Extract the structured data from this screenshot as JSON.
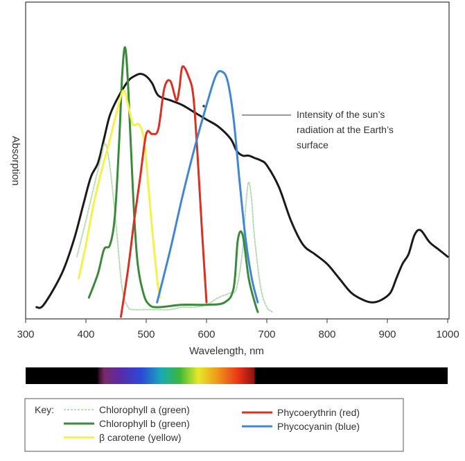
{
  "chart_data": {
    "type": "line",
    "xlabel": "Wavelength, nm",
    "ylabel": "Absorption",
    "xlim": [
      300,
      1000
    ],
    "ylim": [
      0,
      100
    ],
    "x_ticks": [
      "300",
      "400",
      "500",
      "600",
      "700",
      "800",
      "900",
      "1000"
    ],
    "annotation": [
      "Intensity of the sun’s",
      "radiation at the Earth’s",
      "surface"
    ],
    "key_label": "Key:",
    "spectrum_bar": {
      "x_start": 420,
      "x_end": 680
    },
    "sun": {
      "color": "#1a1a1a",
      "x": [
        318,
        330,
        360,
        380,
        395,
        408,
        420,
        430,
        440,
        455,
        470,
        480,
        490,
        500,
        510,
        520,
        540,
        560,
        580,
        600,
        620,
        640,
        650,
        660,
        670,
        680,
        690,
        700,
        720,
        740,
        760,
        780,
        800,
        820,
        840,
        860,
        875,
        890,
        905,
        915,
        925,
        935,
        945,
        955,
        970,
        985,
        1000
      ],
      "y": [
        4,
        5,
        18,
        32,
        46,
        58,
        64,
        74,
        84,
        92,
        98,
        100,
        101,
        100,
        97,
        92,
        90,
        88,
        85,
        82,
        79,
        74,
        69,
        67,
        67,
        66,
        65,
        63,
        54,
        40,
        30,
        26,
        22,
        16,
        10,
        7,
        6,
        7,
        10,
        16,
        22,
        26,
        34,
        36,
        31,
        28,
        25
      ]
    },
    "series": [
      {
        "name": "Chlorophyll a (green)",
        "color": "#b8dcb8",
        "dashed": true,
        "x": [
          385,
          400,
          415,
          425,
          432,
          440,
          450,
          460,
          470,
          480,
          500,
          520,
          540,
          560,
          580,
          600,
          620,
          640,
          650,
          660,
          665,
          670,
          675,
          680,
          690,
          700,
          710
        ],
        "y": [
          25,
          40,
          56,
          66,
          72,
          62,
          38,
          12,
          4,
          3,
          3,
          3,
          3,
          4,
          4,
          5,
          8,
          10,
          12,
          28,
          46,
          56,
          48,
          32,
          12,
          4,
          2
        ]
      },
      {
        "name": "Chlorophyll b (green)",
        "color": "#3a8a3a",
        "x": [
          405,
          420,
          430,
          440,
          448,
          455,
          460,
          465,
          470,
          478,
          485,
          495,
          505,
          520,
          560,
          600,
          630,
          645,
          652,
          660,
          670,
          680,
          685
        ],
        "y": [
          8,
          18,
          28,
          30,
          42,
          72,
          100,
          112,
          96,
          52,
          24,
          10,
          5,
          4,
          5,
          5,
          6,
          12,
          32,
          34,
          16,
          6,
          2
        ]
      },
      {
        "name": "β carotene (yellow)",
        "color": "#f5f04a",
        "x": [
          388,
          400,
          412,
          425,
          438,
          450,
          462,
          470,
          478,
          488,
          496,
          503,
          510,
          518,
          523
        ],
        "y": [
          16,
          30,
          46,
          60,
          72,
          84,
          94,
          88,
          80,
          80,
          74,
          56,
          36,
          16,
          8
        ]
      },
      {
        "name": "Phycoerythrin (red)",
        "color": "#d93020",
        "x": [
          458,
          470,
          480,
          490,
          500,
          510,
          520,
          530,
          540,
          550,
          555,
          560,
          570,
          578,
          585,
          592,
          600
        ],
        "y": [
          0,
          20,
          40,
          58,
          76,
          76,
          78,
          95,
          98,
          90,
          95,
          104,
          100,
          92,
          68,
          38,
          6
        ]
      },
      {
        "name": "Phycocyanin (blue)",
        "color": "#3f86d6",
        "x": [
          518,
          540,
          560,
          580,
          600,
          615,
          625,
          635,
          645,
          655,
          665,
          675,
          685
        ],
        "y": [
          6,
          28,
          50,
          70,
          88,
          100,
          102,
          98,
          82,
          56,
          32,
          16,
          6
        ]
      }
    ],
    "legend": [
      {
        "label": "Chlorophyll a (green)",
        "color": "#b8dcb8",
        "dashed": true
      },
      {
        "label": "Chlorophyll b (green)",
        "color": "#3a8a3a",
        "dashed": false
      },
      {
        "label": "β carotene (yellow)",
        "color": "#f5f04a",
        "dashed": false
      },
      {
        "label": "Phycoerythrin (red)",
        "color": "#d93020",
        "dashed": false
      },
      {
        "label": "Phycocyanin (blue)",
        "color": "#3f86d6",
        "dashed": false
      }
    ]
  }
}
